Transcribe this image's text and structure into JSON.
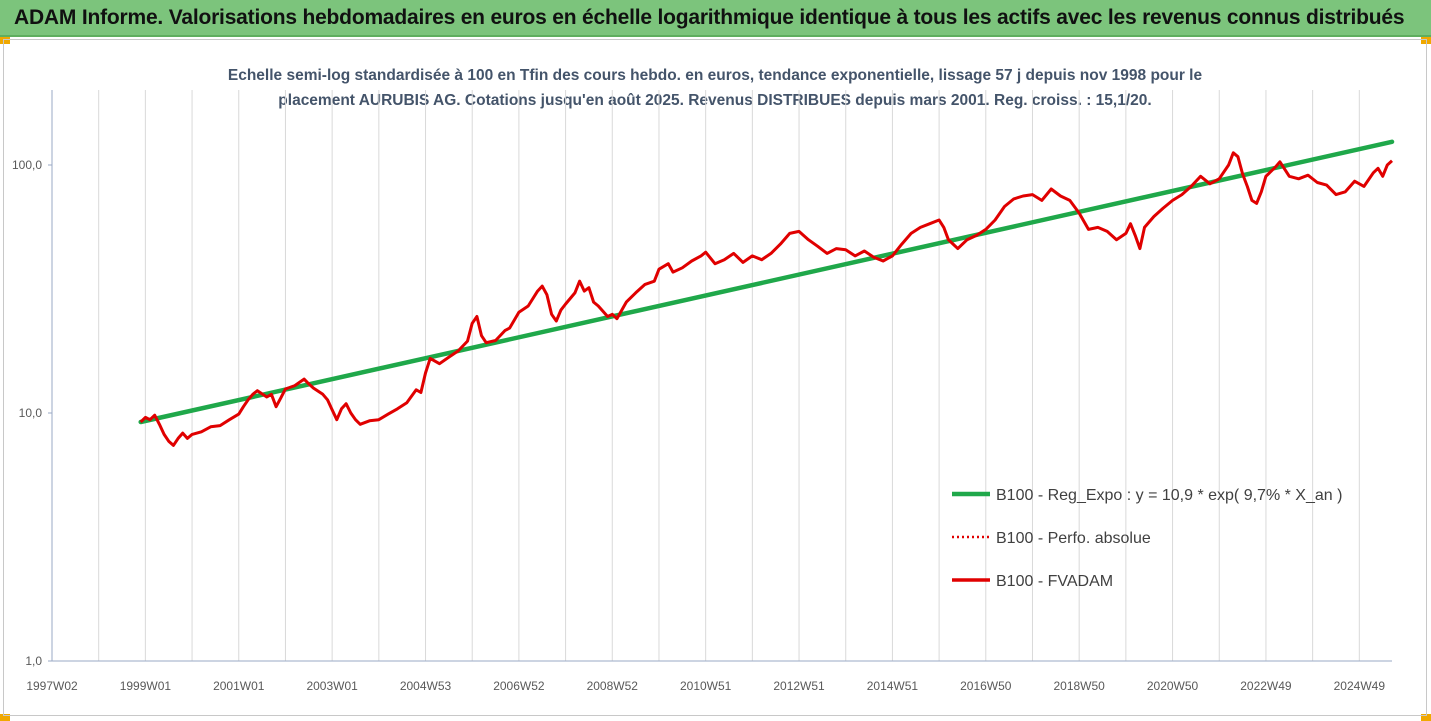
{
  "header": {
    "title": "ADAM Informe. Valorisations hebdomadaires en euros en échelle logarithmique identique à tous les actifs avec les revenus connus distribués"
  },
  "chart_data": {
    "type": "line",
    "title_line1": "Echelle semi-log standardisée à 100 en Tfin des cours hebdo. en euros, tendance exponentielle, lissage 57 j depuis nov 1998 pour le",
    "title_line2": "placement AURUBIS AG. Cotations jusqu'en août 2025. Revenus DISTRIBUES depuis mars 2001.  Reg. croiss. : 15,1/20.",
    "y_scale": "log",
    "ylim": [
      1,
      200
    ],
    "y_ticks": [
      {
        "value": 1,
        "label": "1,0"
      },
      {
        "value": 10,
        "label": "10,0"
      },
      {
        "value": 100,
        "label": "100,0"
      }
    ],
    "xlim": [
      1997.0,
      2025.7
    ],
    "x_ticks": [
      {
        "year": 1997.0,
        "label": "1997W02"
      },
      {
        "year": 1999.0,
        "label": "1999W01"
      },
      {
        "year": 2001.0,
        "label": "2001W01"
      },
      {
        "year": 2003.0,
        "label": "2003W01"
      },
      {
        "year": 2005.0,
        "label": "2004W53"
      },
      {
        "year": 2007.0,
        "label": "2006W52"
      },
      {
        "year": 2009.0,
        "label": "2008W52"
      },
      {
        "year": 2011.0,
        "label": "2010W51"
      },
      {
        "year": 2013.0,
        "label": "2012W51"
      },
      {
        "year": 2015.0,
        "label": "2014W51"
      },
      {
        "year": 2017.0,
        "label": "2016W50"
      },
      {
        "year": 2019.0,
        "label": "2018W50"
      },
      {
        "year": 2021.0,
        "label": "2020W50"
      },
      {
        "year": 2023.0,
        "label": "2022W49"
      },
      {
        "year": 2025.0,
        "label": "2024W49"
      }
    ],
    "grid": "vertical",
    "legend_position": "right",
    "series": [
      {
        "name": "B100 - Reg_Expo : y = 10,9 * exp( 9,7% *  X_an )",
        "color": "#1fa84a",
        "style": "solid-thick",
        "points": [
          [
            1998.9,
            9.2
          ],
          [
            2025.7,
            124
          ]
        ]
      },
      {
        "name": "B100 - Perfo. absolue",
        "color": "#e00000",
        "style": "dotted",
        "points": []
      },
      {
        "name": "B100 - FVADAM",
        "color": "#e00000",
        "style": "solid",
        "points": [
          [
            1998.9,
            9.2
          ],
          [
            1999.0,
            9.6
          ],
          [
            1999.1,
            9.4
          ],
          [
            1999.2,
            9.8
          ],
          [
            1999.3,
            9.0
          ],
          [
            1999.4,
            8.2
          ],
          [
            1999.5,
            7.7
          ],
          [
            1999.6,
            7.4
          ],
          [
            1999.7,
            7.9
          ],
          [
            1999.8,
            8.3
          ],
          [
            1999.9,
            7.9
          ],
          [
            2000.0,
            8.2
          ],
          [
            2000.2,
            8.4
          ],
          [
            2000.4,
            8.8
          ],
          [
            2000.6,
            8.9
          ],
          [
            2000.8,
            9.4
          ],
          [
            2001.0,
            9.9
          ],
          [
            2001.1,
            10.6
          ],
          [
            2001.2,
            11.3
          ],
          [
            2001.3,
            11.9
          ],
          [
            2001.4,
            12.3
          ],
          [
            2001.6,
            11.6
          ],
          [
            2001.7,
            11.9
          ],
          [
            2001.8,
            10.6
          ],
          [
            2001.9,
            11.5
          ],
          [
            2002.0,
            12.5
          ],
          [
            2002.2,
            12.9
          ],
          [
            2002.4,
            13.7
          ],
          [
            2002.5,
            13.1
          ],
          [
            2002.6,
            12.6
          ],
          [
            2002.8,
            11.9
          ],
          [
            2002.9,
            11.3
          ],
          [
            2003.0,
            10.3
          ],
          [
            2003.1,
            9.4
          ],
          [
            2003.2,
            10.4
          ],
          [
            2003.3,
            10.9
          ],
          [
            2003.4,
            10.0
          ],
          [
            2003.5,
            9.4
          ],
          [
            2003.6,
            9.0
          ],
          [
            2003.8,
            9.3
          ],
          [
            2004.0,
            9.4
          ],
          [
            2004.2,
            9.9
          ],
          [
            2004.4,
            10.4
          ],
          [
            2004.6,
            11.0
          ],
          [
            2004.8,
            12.4
          ],
          [
            2004.9,
            12.1
          ],
          [
            2005.0,
            14.5
          ],
          [
            2005.1,
            16.6
          ],
          [
            2005.3,
            15.8
          ],
          [
            2005.5,
            16.8
          ],
          [
            2005.7,
            17.8
          ],
          [
            2005.9,
            19.5
          ],
          [
            2006.0,
            23.0
          ],
          [
            2006.1,
            24.5
          ],
          [
            2006.2,
            20.5
          ],
          [
            2006.3,
            19.2
          ],
          [
            2006.5,
            19.6
          ],
          [
            2006.7,
            21.5
          ],
          [
            2006.8,
            22.0
          ],
          [
            2007.0,
            25.5
          ],
          [
            2007.2,
            27.0
          ],
          [
            2007.4,
            31.0
          ],
          [
            2007.5,
            32.5
          ],
          [
            2007.6,
            30.0
          ],
          [
            2007.7,
            25.0
          ],
          [
            2007.8,
            23.5
          ],
          [
            2007.9,
            26.0
          ],
          [
            2008.0,
            27.5
          ],
          [
            2008.2,
            30.5
          ],
          [
            2008.3,
            34.0
          ],
          [
            2008.4,
            31.0
          ],
          [
            2008.5,
            32.0
          ],
          [
            2008.6,
            28.0
          ],
          [
            2008.7,
            27.0
          ],
          [
            2008.9,
            24.5
          ],
          [
            2009.0,
            25.0
          ],
          [
            2009.1,
            24.0
          ],
          [
            2009.3,
            28.0
          ],
          [
            2009.5,
            30.5
          ],
          [
            2009.7,
            33.0
          ],
          [
            2009.9,
            34.0
          ],
          [
            2010.0,
            38.0
          ],
          [
            2010.2,
            40.0
          ],
          [
            2010.3,
            37.0
          ],
          [
            2010.5,
            38.5
          ],
          [
            2010.7,
            41.0
          ],
          [
            2010.9,
            43.0
          ],
          [
            2011.0,
            44.5
          ],
          [
            2011.2,
            40.0
          ],
          [
            2011.4,
            41.5
          ],
          [
            2011.6,
            44.0
          ],
          [
            2011.8,
            40.5
          ],
          [
            2012.0,
            43.0
          ],
          [
            2012.2,
            41.5
          ],
          [
            2012.4,
            44.0
          ],
          [
            2012.6,
            48.0
          ],
          [
            2012.8,
            53.0
          ],
          [
            2013.0,
            54.0
          ],
          [
            2013.2,
            50.0
          ],
          [
            2013.4,
            47.0
          ],
          [
            2013.6,
            44.0
          ],
          [
            2013.8,
            46.0
          ],
          [
            2014.0,
            45.5
          ],
          [
            2014.2,
            43.0
          ],
          [
            2014.4,
            45.0
          ],
          [
            2014.6,
            42.5
          ],
          [
            2014.8,
            41.0
          ],
          [
            2015.0,
            43.0
          ],
          [
            2015.2,
            48.0
          ],
          [
            2015.4,
            53.0
          ],
          [
            2015.6,
            56.0
          ],
          [
            2015.8,
            58.0
          ],
          [
            2016.0,
            60.0
          ],
          [
            2016.1,
            56.0
          ],
          [
            2016.2,
            50.0
          ],
          [
            2016.3,
            48.0
          ],
          [
            2016.4,
            46.0
          ],
          [
            2016.6,
            50.0
          ],
          [
            2016.8,
            52.0
          ],
          [
            2017.0,
            55.0
          ],
          [
            2017.2,
            60.0
          ],
          [
            2017.4,
            68.0
          ],
          [
            2017.6,
            73.0
          ],
          [
            2017.8,
            75.0
          ],
          [
            2018.0,
            76.0
          ],
          [
            2018.2,
            72.0
          ],
          [
            2018.4,
            80.0
          ],
          [
            2018.6,
            75.0
          ],
          [
            2018.8,
            72.0
          ],
          [
            2019.0,
            64.0
          ],
          [
            2019.2,
            55.0
          ],
          [
            2019.4,
            56.0
          ],
          [
            2019.6,
            54.0
          ],
          [
            2019.8,
            50.0
          ],
          [
            2020.0,
            53.0
          ],
          [
            2020.1,
            58.0
          ],
          [
            2020.2,
            52.0
          ],
          [
            2020.3,
            46.0
          ],
          [
            2020.4,
            56.0
          ],
          [
            2020.6,
            62.0
          ],
          [
            2020.8,
            67.0
          ],
          [
            2021.0,
            72.0
          ],
          [
            2021.2,
            76.0
          ],
          [
            2021.4,
            82.0
          ],
          [
            2021.6,
            90.0
          ],
          [
            2021.8,
            84.0
          ],
          [
            2022.0,
            88.0
          ],
          [
            2022.2,
            100.0
          ],
          [
            2022.3,
            112.0
          ],
          [
            2022.4,
            108.0
          ],
          [
            2022.5,
            92.0
          ],
          [
            2022.6,
            82.0
          ],
          [
            2022.7,
            72.0
          ],
          [
            2022.8,
            70.0
          ],
          [
            2022.9,
            78.0
          ],
          [
            2023.0,
            90.0
          ],
          [
            2023.2,
            98.0
          ],
          [
            2023.3,
            103.0
          ],
          [
            2023.5,
            90.0
          ],
          [
            2023.7,
            88.0
          ],
          [
            2023.9,
            91.0
          ],
          [
            2024.1,
            85.0
          ],
          [
            2024.3,
            83.0
          ],
          [
            2024.5,
            76.0
          ],
          [
            2024.7,
            78.0
          ],
          [
            2024.9,
            86.0
          ],
          [
            2025.1,
            82.0
          ],
          [
            2025.3,
            93.0
          ],
          [
            2025.4,
            97.0
          ],
          [
            2025.5,
            90.0
          ],
          [
            2025.6,
            100.0
          ],
          [
            2025.7,
            104.0
          ]
        ]
      }
    ]
  }
}
